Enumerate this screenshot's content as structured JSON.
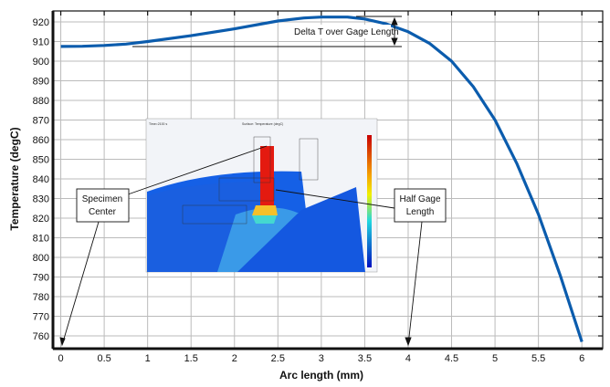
{
  "chart_data": {
    "type": "line",
    "title": "",
    "xlabel": "Arc length (mm)",
    "ylabel": "Temperature (degC)",
    "xlim": [
      -0.09,
      6.24
    ],
    "ylim": [
      753.5,
      925.6
    ],
    "xticks": [
      0,
      0.5,
      1,
      1.5,
      2,
      2.5,
      3,
      3.5,
      4,
      4.5,
      5,
      5.5,
      6
    ],
    "yticks": [
      760,
      770,
      780,
      790,
      800,
      810,
      820,
      830,
      840,
      850,
      860,
      870,
      880,
      890,
      900,
      910,
      920
    ],
    "grid": true,
    "series": [
      {
        "color": "#0b5cad",
        "x": [
          0,
          0.25,
          0.5,
          0.75,
          1,
          1.5,
          2,
          2.5,
          2.8,
          3,
          3.3,
          3.5,
          3.75,
          4,
          4.25,
          4.5,
          4.75,
          5,
          5.25,
          5.5,
          5.75,
          6
        ],
        "y": [
          907.5,
          907.6,
          908,
          908.7,
          910,
          913,
          916.5,
          920.5,
          922,
          922.5,
          922.5,
          921.5,
          919,
          915,
          909,
          900,
          887,
          870,
          848,
          822,
          791,
          757
        ]
      }
    ],
    "annotations": {
      "delta_t": "Delta T over Gage Length",
      "specimen_center": [
        "Specimen",
        "Center"
      ],
      "half_gage": [
        "Half Gage",
        "Length"
      ]
    },
    "inset": {
      "time_label": "Time=2100 s",
      "plot_title": "Surface: Temperature (degC)"
    }
  }
}
